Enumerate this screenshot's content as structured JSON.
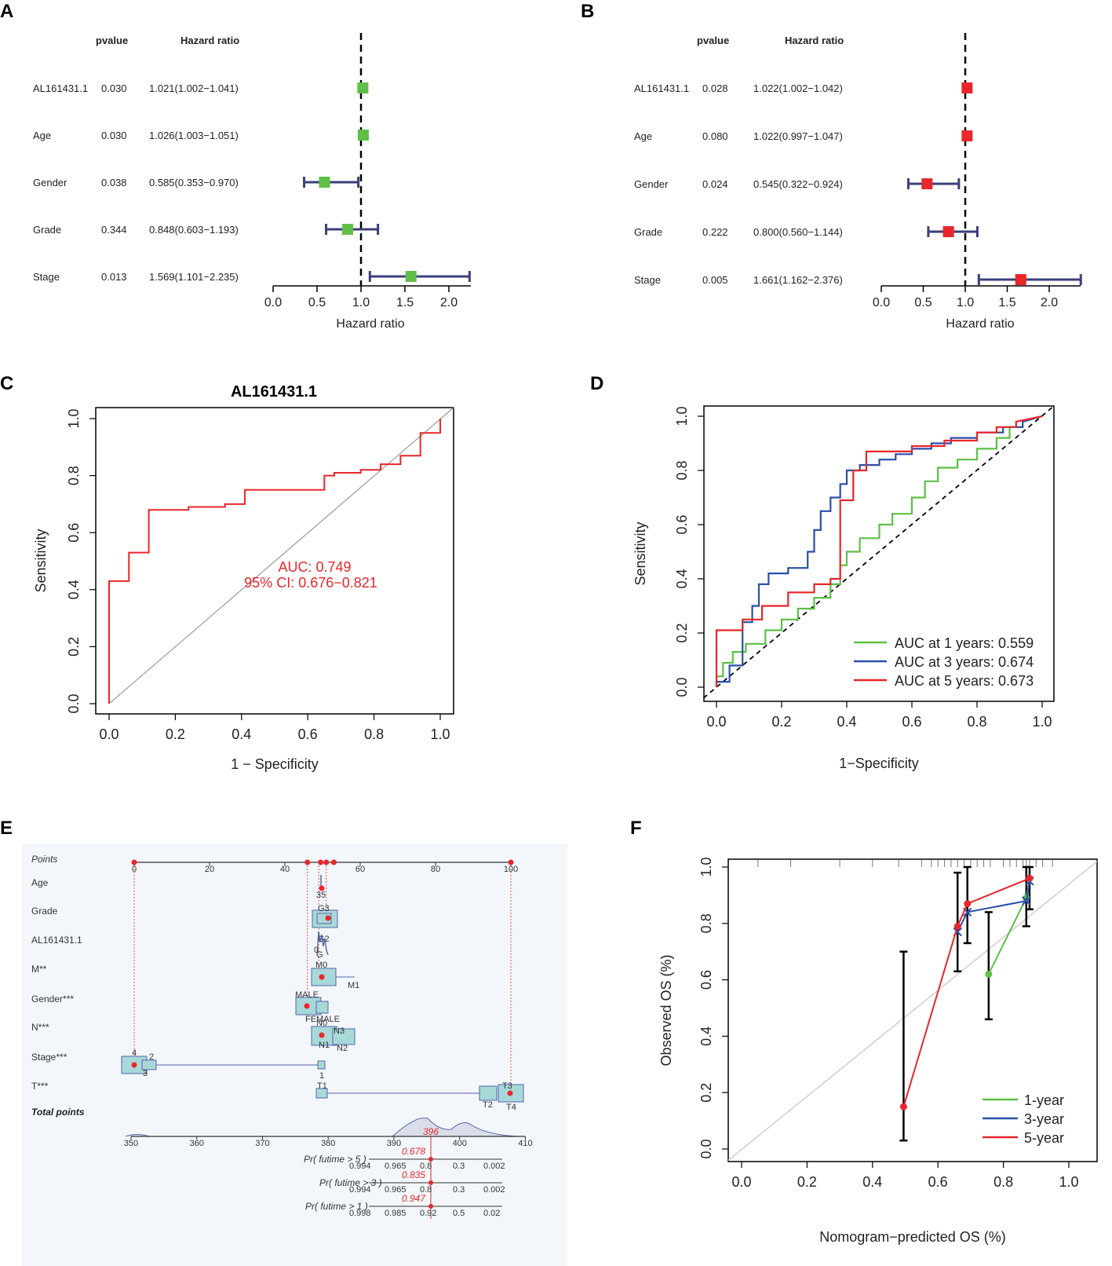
{
  "chart_data": [
    {
      "panel": "A",
      "type": "forest",
      "col_headers": {
        "pvalue": "pvalue",
        "hr": "Hazard ratio"
      },
      "xlabel": "Hazard ratio",
      "xticks": [
        "0.0",
        "0.5",
        "1.0",
        "1.5",
        "2.0"
      ],
      "xlim": [
        0,
        2.25
      ],
      "reference": 1.0,
      "marker_color": "#5fbf46",
      "rows": [
        {
          "name": "AL161431.1",
          "pvalue": "0.030",
          "hr_text": "1.021(1.002−1.041)",
          "hr": 1.021,
          "lo": 1.002,
          "hi": 1.041
        },
        {
          "name": "Age",
          "pvalue": "0.030",
          "hr_text": "1.026(1.003−1.051)",
          "hr": 1.026,
          "lo": 1.003,
          "hi": 1.051
        },
        {
          "name": "Gender",
          "pvalue": "0.038",
          "hr_text": "0.585(0.353−0.970)",
          "hr": 0.585,
          "lo": 0.353,
          "hi": 0.97
        },
        {
          "name": "Grade",
          "pvalue": "0.344",
          "hr_text": "0.848(0.603−1.193)",
          "hr": 0.848,
          "lo": 0.603,
          "hi": 1.193
        },
        {
          "name": "Stage",
          "pvalue": "0.013",
          "hr_text": "1.569(1.101−2.235)",
          "hr": 1.569,
          "lo": 1.101,
          "hi": 2.235
        }
      ]
    },
    {
      "panel": "B",
      "type": "forest",
      "col_headers": {
        "pvalue": "pvalue",
        "hr": "Hazard ratio"
      },
      "xlabel": "Hazard ratio",
      "xticks": [
        "0.0",
        "0.5",
        "1.0",
        "1.5",
        "2.0"
      ],
      "xlim": [
        0,
        2.376
      ],
      "reference": 1.0,
      "marker_color": "#e8262b",
      "rows": [
        {
          "name": "AL161431.1",
          "pvalue": "0.028",
          "hr_text": "1.022(1.002−1.042)",
          "hr": 1.022,
          "lo": 1.002,
          "hi": 1.042
        },
        {
          "name": "Age",
          "pvalue": "0.080",
          "hr_text": "1.022(0.997−1.047)",
          "hr": 1.022,
          "lo": 0.997,
          "hi": 1.047
        },
        {
          "name": "Gender",
          "pvalue": "0.024",
          "hr_text": "0.545(0.322−0.924)",
          "hr": 0.545,
          "lo": 0.322,
          "hi": 0.924
        },
        {
          "name": "Grade",
          "pvalue": "0.222",
          "hr_text": "0.800(0.560−1.144)",
          "hr": 0.8,
          "lo": 0.56,
          "hi": 1.144
        },
        {
          "name": "Stage",
          "pvalue": "0.005",
          "hr_text": "1.661(1.162−2.376)",
          "hr": 1.661,
          "lo": 1.162,
          "hi": 2.376
        }
      ]
    },
    {
      "panel": "C",
      "type": "line",
      "title": "AL161431.1",
      "xlabel": "1 − Specificity",
      "ylabel": "Sensitivity",
      "xticks": [
        "0.0",
        "0.2",
        "0.4",
        "0.6",
        "0.8",
        "1.0"
      ],
      "yticks": [
        "0.0",
        "0.2",
        "0.4",
        "0.6",
        "0.8",
        "1.0"
      ],
      "annotation": [
        "AUC: 0.749",
        "95% CI: 0.676−0.821"
      ],
      "color": "#e8262b",
      "roc": [
        [
          0,
          0
        ],
        [
          0,
          0.43
        ],
        [
          0.06,
          0.43
        ],
        [
          0.06,
          0.53
        ],
        [
          0.12,
          0.53
        ],
        [
          0.12,
          0.68
        ],
        [
          0.24,
          0.68
        ],
        [
          0.24,
          0.69
        ],
        [
          0.35,
          0.69
        ],
        [
          0.35,
          0.7
        ],
        [
          0.41,
          0.7
        ],
        [
          0.41,
          0.75
        ],
        [
          0.65,
          0.75
        ],
        [
          0.65,
          0.8
        ],
        [
          0.68,
          0.8
        ],
        [
          0.68,
          0.81
        ],
        [
          0.76,
          0.81
        ],
        [
          0.76,
          0.82
        ],
        [
          0.82,
          0.82
        ],
        [
          0.82,
          0.83
        ],
        [
          0.82,
          0.84
        ],
        [
          0.88,
          0.84
        ],
        [
          0.88,
          0.87
        ],
        [
          0.94,
          0.87
        ],
        [
          0.94,
          0.92
        ],
        [
          0.94,
          0.95
        ],
        [
          1,
          0.95
        ],
        [
          1,
          0.98
        ],
        [
          1,
          1.0
        ]
      ]
    },
    {
      "panel": "D",
      "type": "line",
      "xlabel": "1−Specificity",
      "ylabel": "Sensitivity",
      "xticks": [
        "0.0",
        "0.2",
        "0.4",
        "0.6",
        "0.8",
        "1.0"
      ],
      "yticks": [
        "0.0",
        "0.2",
        "0.4",
        "0.6",
        "0.8",
        "1.0"
      ],
      "series": [
        {
          "name": "AUC at 1 years: 0.559",
          "color": "#5cbf46",
          "points": [
            [
              0,
              0
            ],
            [
              0,
              0.04
            ],
            [
              0.02,
              0.04
            ],
            [
              0.02,
              0.09
            ],
            [
              0.05,
              0.09
            ],
            [
              0.05,
              0.13
            ],
            [
              0.09,
              0.13
            ],
            [
              0.09,
              0.16
            ],
            [
              0.15,
              0.16
            ],
            [
              0.15,
              0.21
            ],
            [
              0.2,
              0.21
            ],
            [
              0.2,
              0.25
            ],
            [
              0.25,
              0.25
            ],
            [
              0.25,
              0.29
            ],
            [
              0.3,
              0.29
            ],
            [
              0.3,
              0.33
            ],
            [
              0.35,
              0.33
            ],
            [
              0.35,
              0.38
            ],
            [
              0.38,
              0.38
            ],
            [
              0.38,
              0.45
            ],
            [
              0.4,
              0.45
            ],
            [
              0.4,
              0.5
            ],
            [
              0.44,
              0.5
            ],
            [
              0.44,
              0.55
            ],
            [
              0.5,
              0.55
            ],
            [
              0.5,
              0.6
            ],
            [
              0.54,
              0.6
            ],
            [
              0.54,
              0.64
            ],
            [
              0.6,
              0.64
            ],
            [
              0.6,
              0.7
            ],
            [
              0.64,
              0.7
            ],
            [
              0.64,
              0.76
            ],
            [
              0.68,
              0.76
            ],
            [
              0.68,
              0.81
            ],
            [
              0.74,
              0.81
            ],
            [
              0.74,
              0.84
            ],
            [
              0.8,
              0.84
            ],
            [
              0.8,
              0.88
            ],
            [
              0.86,
              0.88
            ],
            [
              0.86,
              0.92
            ],
            [
              0.9,
              0.92
            ],
            [
              0.9,
              0.96
            ],
            [
              0.94,
              0.96
            ],
            [
              0.94,
              0.98
            ],
            [
              1,
              1
            ]
          ]
        },
        {
          "name": "AUC at 3 years: 0.674",
          "color": "#2a4fa8",
          "points": [
            [
              0,
              0
            ],
            [
              0,
              0.02
            ],
            [
              0.04,
              0.02
            ],
            [
              0.04,
              0.08
            ],
            [
              0.08,
              0.08
            ],
            [
              0.08,
              0.24
            ],
            [
              0.11,
              0.24
            ],
            [
              0.11,
              0.3
            ],
            [
              0.13,
              0.3
            ],
            [
              0.13,
              0.38
            ],
            [
              0.16,
              0.38
            ],
            [
              0.16,
              0.42
            ],
            [
              0.22,
              0.42
            ],
            [
              0.22,
              0.44
            ],
            [
              0.28,
              0.44
            ],
            [
              0.28,
              0.5
            ],
            [
              0.3,
              0.5
            ],
            [
              0.3,
              0.58
            ],
            [
              0.32,
              0.58
            ],
            [
              0.32,
              0.65
            ],
            [
              0.35,
              0.65
            ],
            [
              0.35,
              0.7
            ],
            [
              0.38,
              0.7
            ],
            [
              0.38,
              0.75
            ],
            [
              0.4,
              0.75
            ],
            [
              0.4,
              0.8
            ],
            [
              0.44,
              0.8
            ],
            [
              0.44,
              0.82
            ],
            [
              0.5,
              0.82
            ],
            [
              0.5,
              0.84
            ],
            [
              0.55,
              0.84
            ],
            [
              0.55,
              0.86
            ],
            [
              0.6,
              0.86
            ],
            [
              0.6,
              0.88
            ],
            [
              0.66,
              0.88
            ],
            [
              0.66,
              0.9
            ],
            [
              0.72,
              0.9
            ],
            [
              0.72,
              0.92
            ],
            [
              0.8,
              0.92
            ],
            [
              0.8,
              0.94
            ],
            [
              0.88,
              0.94
            ],
            [
              0.88,
              0.96
            ],
            [
              0.94,
              0.96
            ],
            [
              0.94,
              0.98
            ],
            [
              1,
              1
            ]
          ]
        },
        {
          "name": "AUC at 5 years: 0.673",
          "color": "#e8262b",
          "points": [
            [
              0,
              0
            ],
            [
              0,
              0.21
            ],
            [
              0.08,
              0.21
            ],
            [
              0.08,
              0.25
            ],
            [
              0.14,
              0.25
            ],
            [
              0.14,
              0.3
            ],
            [
              0.22,
              0.3
            ],
            [
              0.22,
              0.35
            ],
            [
              0.3,
              0.35
            ],
            [
              0.3,
              0.38
            ],
            [
              0.35,
              0.38
            ],
            [
              0.35,
              0.4
            ],
            [
              0.38,
              0.4
            ],
            [
              0.38,
              0.69
            ],
            [
              0.42,
              0.69
            ],
            [
              0.42,
              0.8
            ],
            [
              0.46,
              0.8
            ],
            [
              0.46,
              0.87
            ],
            [
              0.6,
              0.87
            ],
            [
              0.6,
              0.89
            ],
            [
              0.7,
              0.89
            ],
            [
              0.7,
              0.91
            ],
            [
              0.8,
              0.91
            ],
            [
              0.8,
              0.94
            ],
            [
              0.86,
              0.94
            ],
            [
              0.86,
              0.96
            ],
            [
              0.92,
              0.96
            ],
            [
              0.92,
              0.98
            ],
            [
              1,
              1
            ]
          ]
        }
      ]
    },
    {
      "panel": "E",
      "type": "nomogram",
      "rows": [
        "Points",
        "Age",
        "Grade",
        "AL161431.1",
        "M**",
        "Gender***",
        "N***",
        "Stage***",
        "T***",
        "Total points"
      ],
      "points_ticks": [
        "0",
        "20",
        "40",
        "60",
        "80",
        "100"
      ],
      "total_ticks": [
        "350",
        "360",
        "370",
        "380",
        "390",
        "400",
        "410"
      ],
      "total_value": "396",
      "level_labels": {
        "age": "35",
        "grade": [
          "G3",
          "G2",
          "G"
        ],
        "al": [
          "0"
        ],
        "m": [
          "M0",
          "M1"
        ],
        "gender": [
          "MALE",
          "FEMALE"
        ],
        "n": [
          "N0",
          "N3",
          "N1",
          "N2"
        ],
        "stage": [
          "4",
          "2",
          "3",
          "1"
        ],
        "t": [
          "T1",
          "T3",
          "T2",
          "T4"
        ]
      },
      "probability_rows": [
        {
          "label": "Pr( futime > 5 )",
          "value": "0.678",
          "ticks": [
            "0.994",
            "0.965",
            "0.8",
            "0.3",
            "0.002"
          ]
        },
        {
          "label": "Pr( futime > 3 )",
          "value": "0.835",
          "ticks": [
            "0.994",
            "0.965",
            "0.8",
            "0.3",
            "0.002"
          ]
        },
        {
          "label": "Pr( futime > 1 )",
          "value": "0.947",
          "ticks": [
            "0.998",
            "0.985",
            "0.92",
            "0.5",
            "0.02"
          ]
        }
      ]
    },
    {
      "panel": "F",
      "type": "line",
      "xlabel": "Nomogram−predicted OS (%)",
      "ylabel": "Observed OS (%)",
      "xticks": [
        "0.0",
        "0.2",
        "0.4",
        "0.6",
        "0.8",
        "1.0"
      ],
      "yticks": [
        "0.0",
        "0.2",
        "0.4",
        "0.6",
        "0.8",
        "1.0"
      ],
      "series": [
        {
          "name": "1-year",
          "color": "#5cbf46",
          "points": [
            [
              0.755,
              0.62
            ],
            [
              0.87,
              0.89
            ],
            [
              0.88,
              0.96
            ]
          ]
        },
        {
          "name": "3-year",
          "color": "#2a4fa8",
          "points": [
            [
              0.66,
              0.77
            ],
            [
              0.69,
              0.84
            ],
            [
              0.87,
              0.88
            ],
            [
              0.88,
              0.95
            ]
          ]
        },
        {
          "name": "5-year",
          "color": "#e8262b",
          "points": [
            [
              0.495,
              0.15
            ],
            [
              0.66,
              0.79
            ],
            [
              0.69,
              0.87
            ],
            [
              0.88,
              0.96
            ]
          ]
        }
      ],
      "error_bars": [
        [
          0.495,
          0.03,
          0.7
        ],
        [
          0.66,
          0.63,
          0.98
        ],
        [
          0.69,
          0.73,
          1.0
        ],
        [
          0.755,
          0.46,
          0.84
        ],
        [
          0.87,
          0.79,
          1.0
        ],
        [
          0.88,
          0.85,
          1.0
        ]
      ]
    }
  ]
}
